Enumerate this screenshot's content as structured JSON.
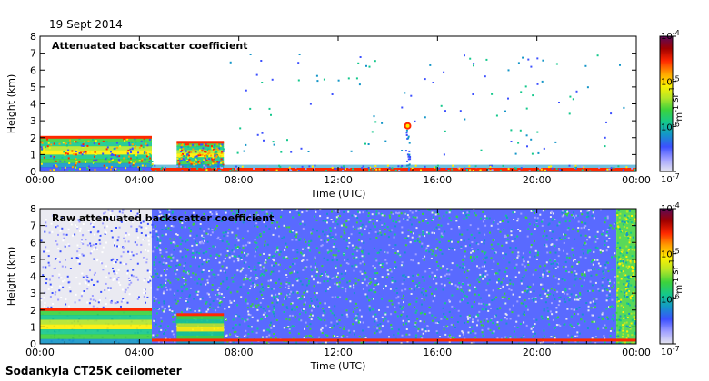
{
  "figure": {
    "date": "19 Sept 2014",
    "footer": "Sodankyla CT25K ceilometer"
  },
  "chart_data": [
    {
      "type": "heatmap",
      "title": "Attenuated backscatter coefficient",
      "xlabel": "Time (UTC)",
      "ylabel": "Height (km)",
      "x_ticks": [
        "00:00",
        "04:00",
        "08:00",
        "12:00",
        "16:00",
        "20:00",
        "00:00"
      ],
      "y_ticks": [
        0,
        1,
        2,
        3,
        4,
        5,
        6,
        7,
        8
      ],
      "xlim_hours": [
        0,
        24
      ],
      "ylim_km": [
        0,
        8
      ],
      "colorbar": {
        "scale": "log",
        "ticks": [
          {
            "base": "10",
            "exp": "-4"
          },
          {
            "base": "10",
            "exp": "-5"
          },
          {
            "base": "10",
            "exp": "-6"
          },
          {
            "base": "10",
            "exp": "-7"
          }
        ],
        "unit_label": "m sr",
        "unit_exps": [
          "-1",
          "-1"
        ]
      },
      "features": [
        {
          "kind": "boundary_layer",
          "from_hour": 0,
          "to_hour": 4.5,
          "top_km": 2.0
        },
        {
          "kind": "boundary_layer",
          "from_hour": 5.5,
          "to_hour": 7.4,
          "top_km": 1.7
        },
        {
          "kind": "surface_layer",
          "from_hour": 4.5,
          "to_hour": 24,
          "top_km": 0.4
        },
        {
          "kind": "cloud",
          "hour": 14.8,
          "height_km": 2.7
        }
      ]
    },
    {
      "type": "heatmap",
      "title": "Raw attenuated backscatter coefficient",
      "xlabel": "Time (UTC)",
      "ylabel": "Height (km)",
      "x_ticks": [
        "00:00",
        "04:00",
        "08:00",
        "12:00",
        "16:00",
        "20:00",
        "00:00"
      ],
      "y_ticks": [
        0,
        1,
        2,
        3,
        4,
        5,
        6,
        7,
        8
      ],
      "xlim_hours": [
        0,
        24
      ],
      "ylim_km": [
        0,
        8
      ],
      "colorbar": {
        "scale": "log",
        "ticks": [
          {
            "base": "10",
            "exp": "-4"
          },
          {
            "base": "10",
            "exp": "-5"
          },
          {
            "base": "10",
            "exp": "-6"
          },
          {
            "base": "10",
            "exp": "-7"
          }
        ],
        "unit_label": "m sr",
        "unit_exps": [
          "-1",
          "-1"
        ]
      },
      "features": [
        {
          "kind": "noise_low",
          "from_hour": 0,
          "to_hour": 4.5
        },
        {
          "kind": "noise_high",
          "from_hour": 4.5,
          "to_hour": 23.2
        },
        {
          "kind": "noise_very_high",
          "from_hour": 23.2,
          "to_hour": 24
        }
      ]
    }
  ]
}
